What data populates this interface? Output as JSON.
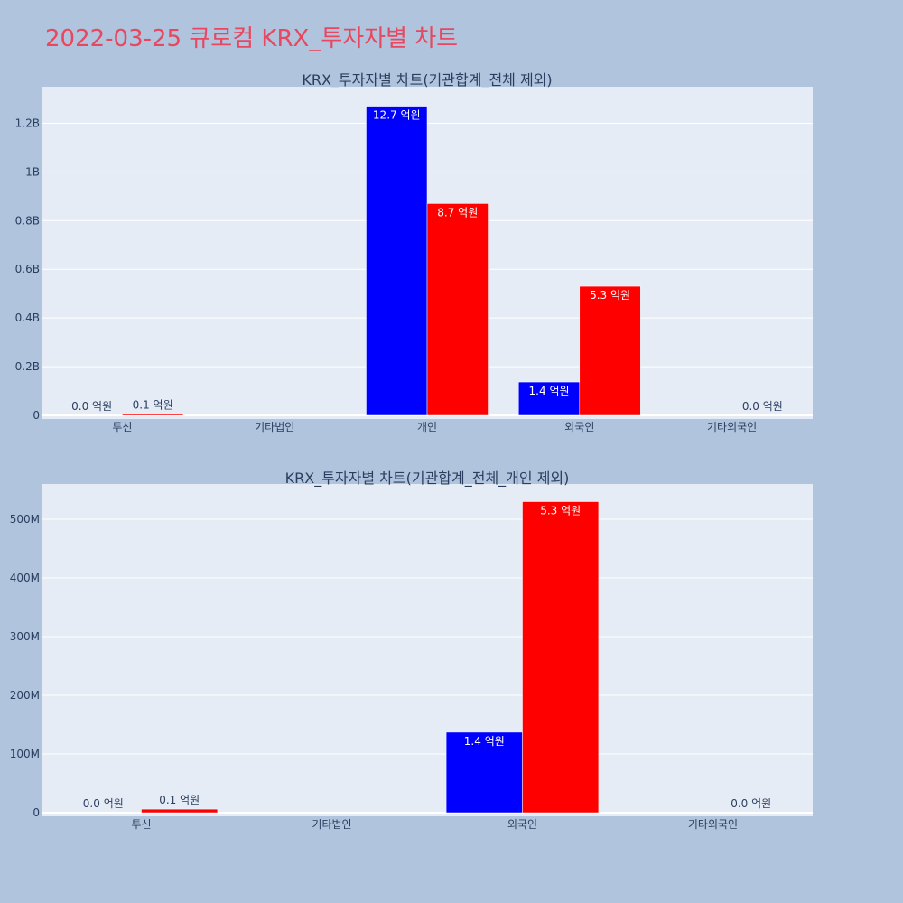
{
  "title": "2022-03-25 큐로컴 KRX_투자자별 차트",
  "colors": {
    "buy": "#0000ff",
    "sell": "#ff0000",
    "plot_bg": "#e5ecf6",
    "page_bg": "#b0c4de",
    "title": "#e8475f"
  },
  "chart_data": [
    {
      "type": "bar",
      "title": "KRX_투자자별 차트(기관합계_전체 제외)",
      "categories": [
        "투신",
        "기타법인",
        "개인",
        "외국인",
        "기타외국인"
      ],
      "series": [
        {
          "values": [
            0,
            0,
            1270000000,
            137000000,
            0
          ],
          "labels": [
            "0.0 억원",
            "",
            "12.7 억원",
            "1.4 억원",
            ""
          ]
        },
        {
          "values": [
            6000000,
            0,
            870000000,
            530000000,
            0
          ],
          "labels": [
            "0.1 억원",
            "",
            "8.7 억원",
            "5.3 억원",
            "0.0 억원"
          ]
        }
      ],
      "ylim": [
        0,
        1350000000
      ],
      "yticks": [
        0,
        200000000,
        400000000,
        600000000,
        800000000,
        1000000000,
        1200000000
      ],
      "yticklabels": [
        "0",
        "0.2B",
        "0.4B",
        "0.6B",
        "0.8B",
        "1B",
        "1.2B"
      ],
      "grid": true
    },
    {
      "type": "bar",
      "title": "KRX_투자자별 차트(기관합계_전체_개인 제외)",
      "categories": [
        "투신",
        "기타법인",
        "외국인",
        "기타외국인"
      ],
      "series": [
        {
          "values": [
            0,
            0,
            137000000,
            0
          ],
          "labels": [
            "0.0 억원",
            "",
            "1.4 억원",
            ""
          ]
        },
        {
          "values": [
            6000000,
            0,
            530000000,
            0
          ],
          "labels": [
            "0.1 억원",
            "",
            "5.3 억원",
            "0.0 억원"
          ]
        }
      ],
      "ylim": [
        0,
        560000000
      ],
      "yticks": [
        0,
        100000000,
        200000000,
        300000000,
        400000000,
        500000000
      ],
      "yticklabels": [
        "0",
        "100M",
        "200M",
        "300M",
        "400M",
        "500M"
      ],
      "grid": true
    }
  ]
}
